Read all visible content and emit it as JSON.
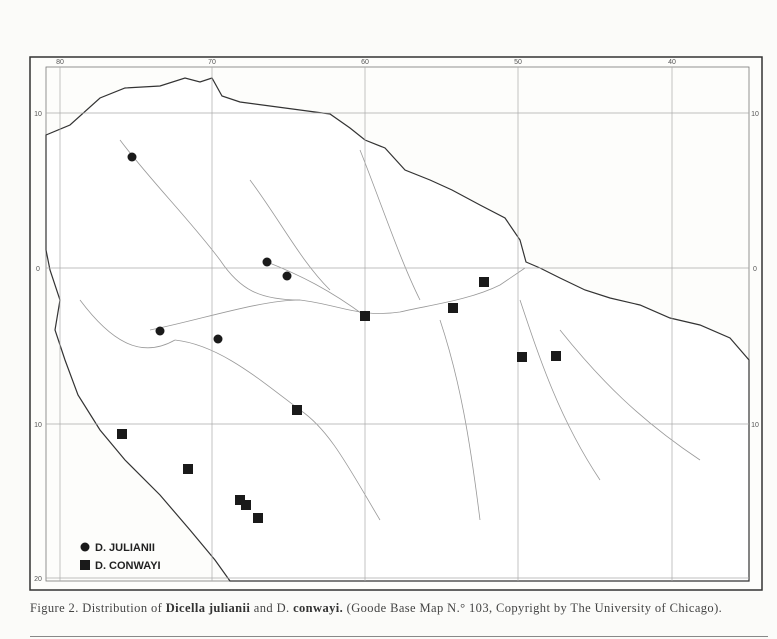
{
  "map": {
    "longitude_labels": [
      "80",
      "70",
      "60",
      "50",
      "40"
    ],
    "latitude_labels_left": [
      "10",
      "0",
      "10",
      "20"
    ],
    "latitude_labels_right": [
      "10",
      "0",
      "10"
    ],
    "legend": [
      "D. JULIANII",
      "D. CONWAYI"
    ]
  },
  "caption": {
    "parts": [
      "Figure 2.  Distribution of ",
      "Dicella julianii",
      " and D. ",
      "conwayi.",
      " (Goode Base Map N.° 103, Copyright by The University of Chicago)."
    ]
  }
}
